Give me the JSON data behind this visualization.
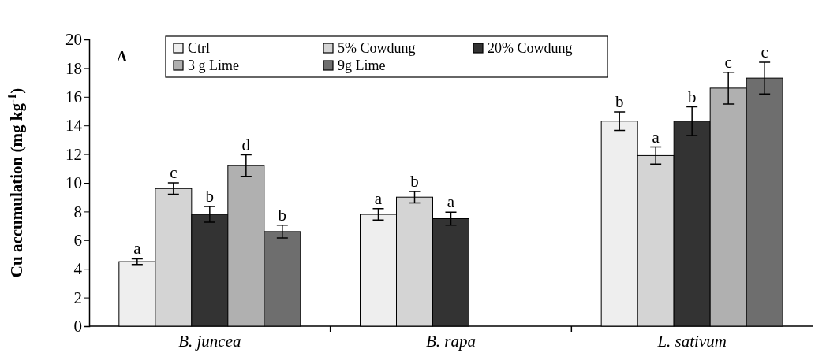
{
  "chart_data": {
    "type": "bar",
    "ylabel": "Cu accumulation (mg kg$^{-1}$)",
    "categories": [
      "B. juncea",
      "B. rapa",
      "L. sativum"
    ],
    "series": [
      {
        "name": "Ctrl",
        "color": "#eeeeee",
        "values": [
          4.5,
          7.8,
          14.3
        ],
        "errors": [
          0.2,
          0.4,
          0.65
        ],
        "value_labels": [
          "a",
          "a",
          "b"
        ]
      },
      {
        "name": "5% Cowdung",
        "color": "#d4d4d4",
        "values": [
          9.6,
          9.0,
          11.9
        ],
        "errors": [
          0.4,
          0.4,
          0.6
        ],
        "value_labels": [
          "c",
          "b",
          "a"
        ]
      },
      {
        "name": "20% Cowdung",
        "color": "#333333",
        "values": [
          7.8,
          7.5,
          14.3
        ],
        "errors": [
          0.55,
          0.45,
          1.0
        ],
        "value_labels": [
          "b",
          "a",
          "b"
        ]
      },
      {
        "name": "3 g Lime",
        "color": "#b0b0b0",
        "values": [
          11.2,
          null,
          16.6
        ],
        "errors": [
          0.75,
          null,
          1.1
        ],
        "value_labels": [
          "d",
          null,
          "c"
        ]
      },
      {
        "name": "9g Lime",
        "color": "#6e6e6e",
        "values": [
          6.6,
          null,
          17.3
        ],
        "errors": [
          0.45,
          null,
          1.1
        ],
        "value_labels": [
          "b",
          null,
          "c"
        ]
      }
    ],
    "ylim": [
      0,
      20
    ],
    "yticks": [
      0,
      2,
      4,
      6,
      8,
      10,
      12,
      14,
      16,
      18,
      20
    ],
    "legend": "top",
    "annotations": [
      "A"
    ]
  }
}
